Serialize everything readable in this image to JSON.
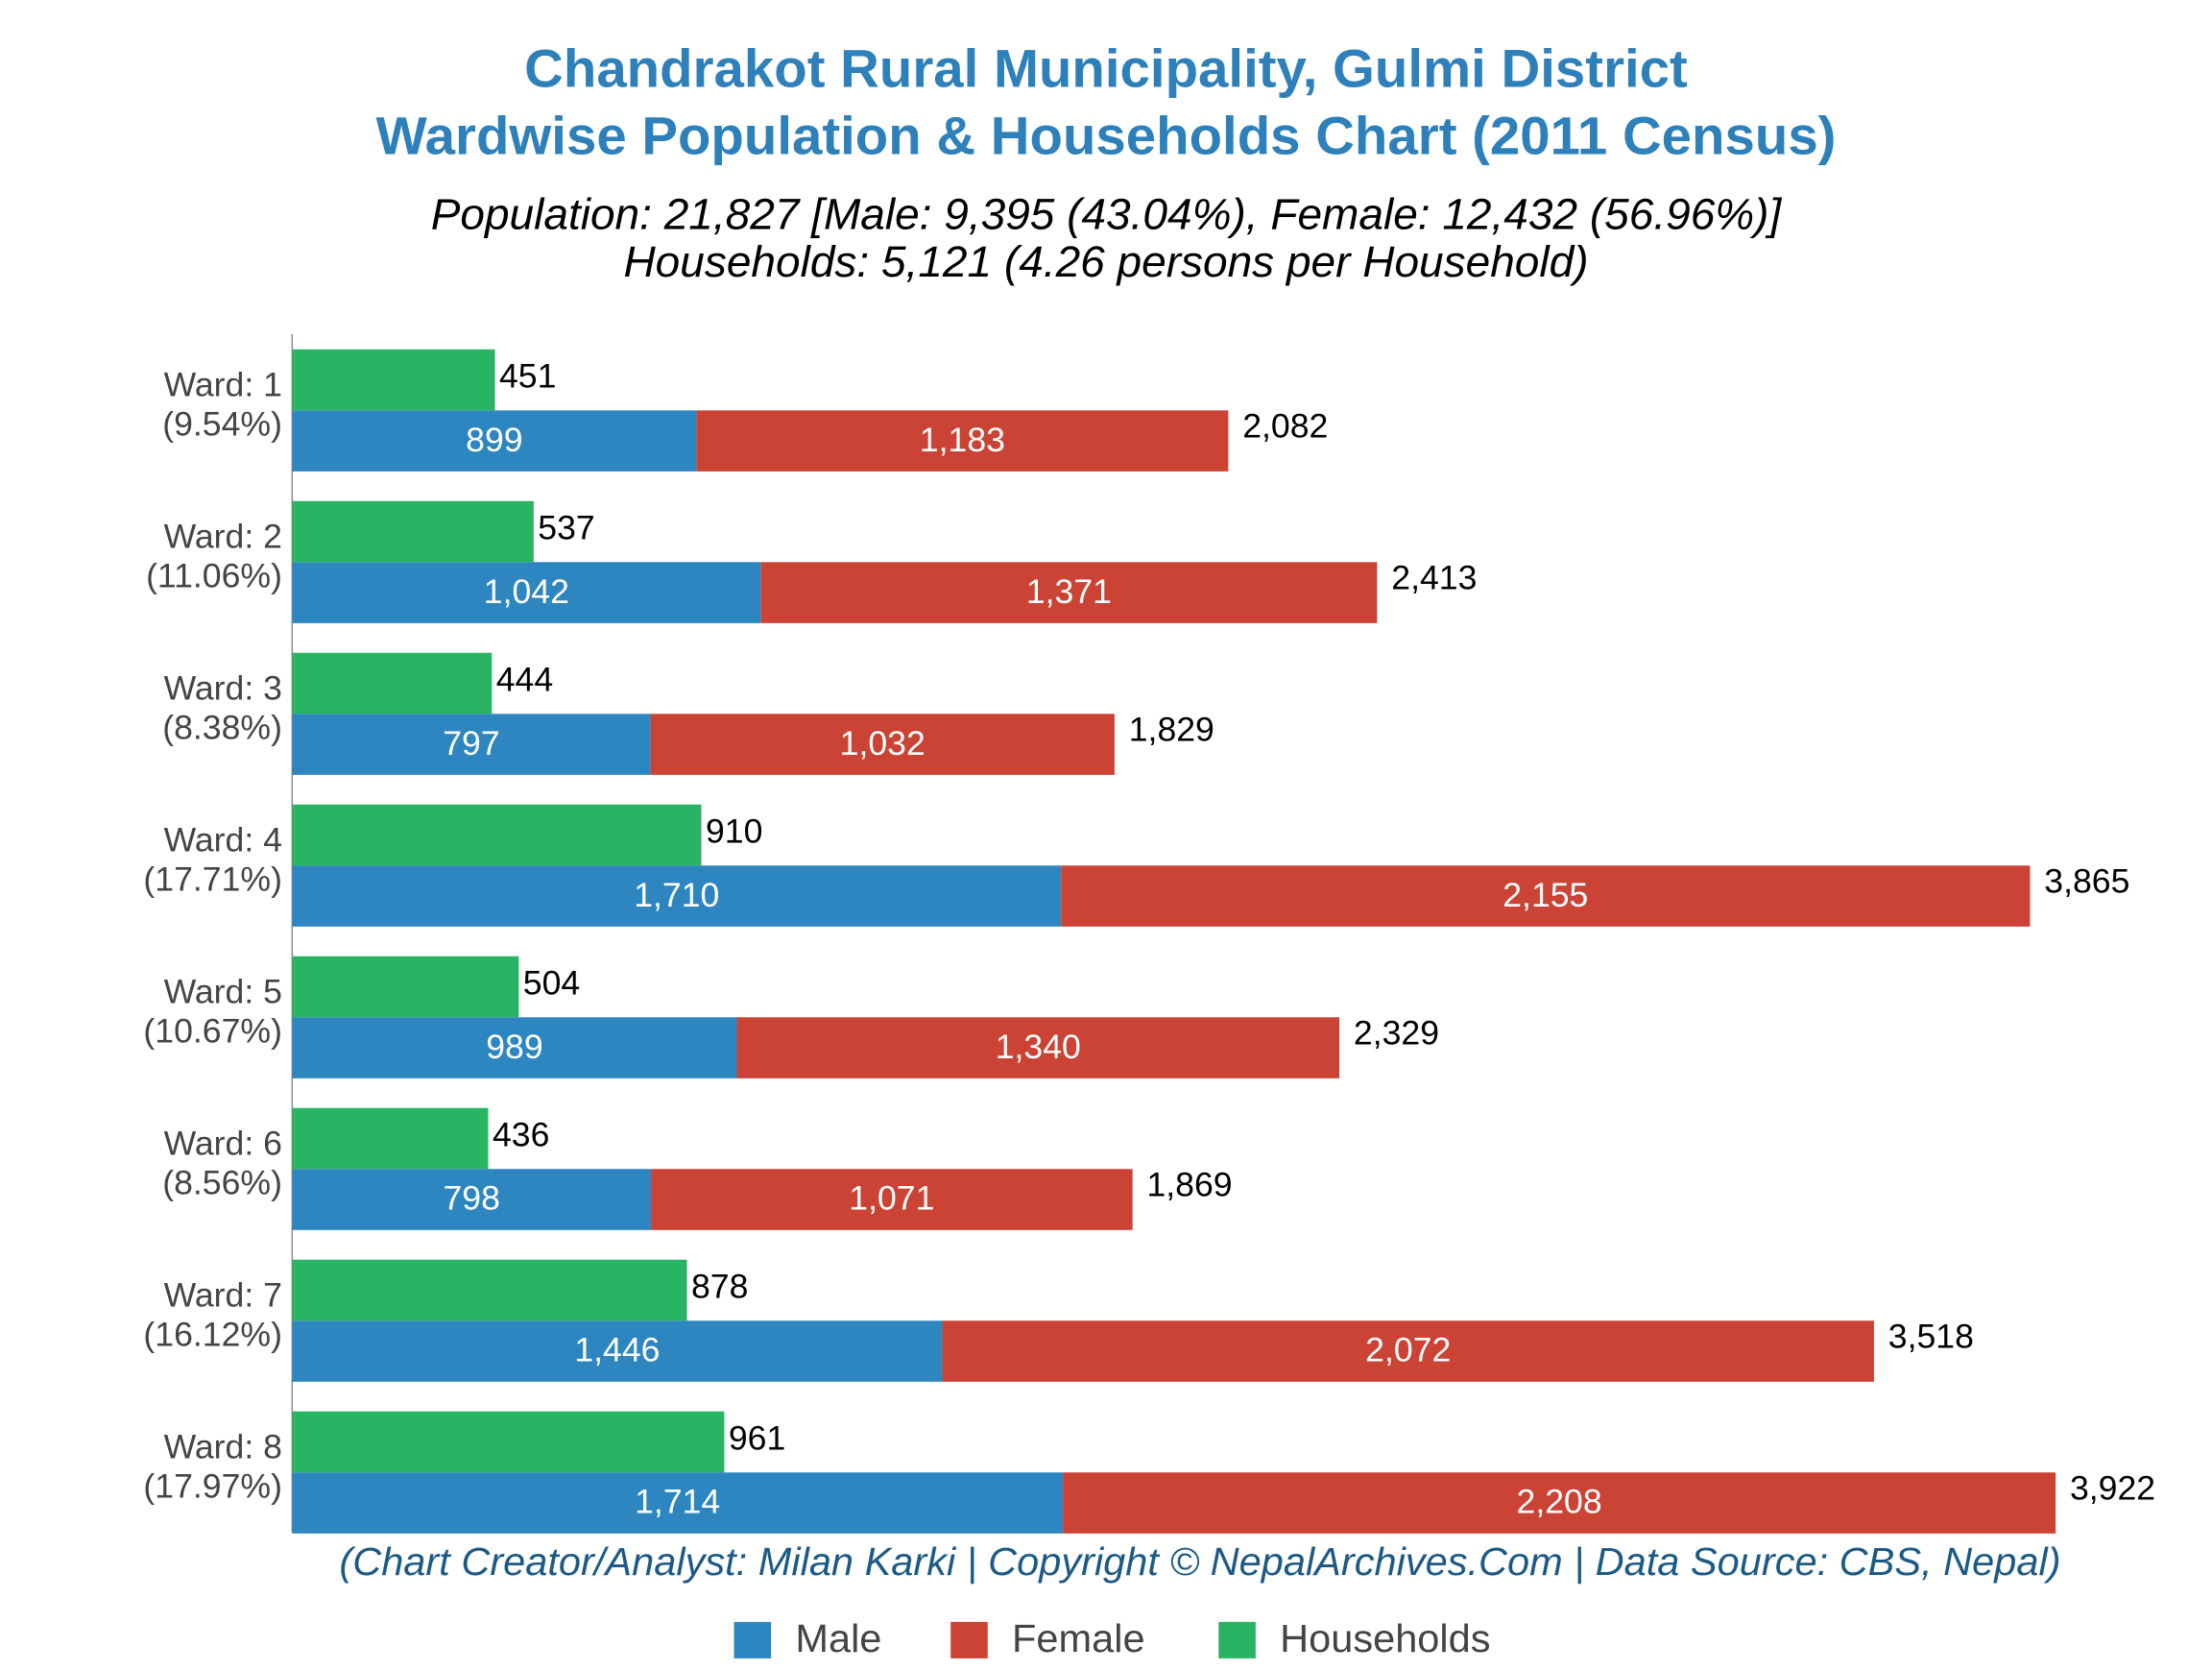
{
  "chart_data": {
    "type": "bar",
    "orientation": "horizontal",
    "title": [
      "Chandrakot Rural Municipality, Gulmi District",
      "Wardwise Population & Households Chart (2011 Census)"
    ],
    "subtitle": [
      "Population: 21,827 [Male: 9,395 (43.04%), Female: 12,432 (56.96%)]",
      "Households: 5,121 (4.26 persons per Household)"
    ],
    "footer": "(Chart Creator/Analyst: Milan Karki | Copyright © NepalArchives.Com | Data Source: CBS, Nepal)",
    "categories": [
      "Ward: 1",
      "Ward: 2",
      "Ward: 3",
      "Ward: 4",
      "Ward: 5",
      "Ward: 6",
      "Ward: 7",
      "Ward: 8"
    ],
    "category_shares": [
      "(9.54%)",
      "(11.06%)",
      "(8.38%)",
      "(17.71%)",
      "(10.67%)",
      "(8.56%)",
      "(16.12%)",
      "(17.97%)"
    ],
    "series": [
      {
        "name": "Male",
        "color": "#2e86c1",
        "stack": "population",
        "values": [
          899,
          1042,
          797,
          1710,
          989,
          798,
          1446,
          1714
        ],
        "value_labels": [
          "899",
          "1,042",
          "797",
          "1,710",
          "989",
          "798",
          "1,446",
          "1,714"
        ]
      },
      {
        "name": "Female",
        "color": "#cb4335",
        "stack": "population",
        "values": [
          1183,
          1371,
          1032,
          2155,
          1340,
          1071,
          2072,
          2208
        ],
        "value_labels": [
          "1,183",
          "1,371",
          "1,032",
          "2,155",
          "1,340",
          "1,071",
          "2,072",
          "2,208"
        ]
      },
      {
        "name": "Households",
        "color": "#28b463",
        "stack": "households",
        "values": [
          451,
          537,
          444,
          910,
          504,
          436,
          878,
          961
        ]
      }
    ],
    "totals": [
      2082,
      2413,
      1829,
      3865,
      2329,
      1869,
      3518,
      3922
    ],
    "total_labels": [
      "2,082",
      "2,413",
      "1,829",
      "3,865",
      "2,329",
      "1,869",
      "3,518",
      "3,922"
    ],
    "xlim": [
      0,
      4200
    ],
    "legend": "bottom"
  }
}
